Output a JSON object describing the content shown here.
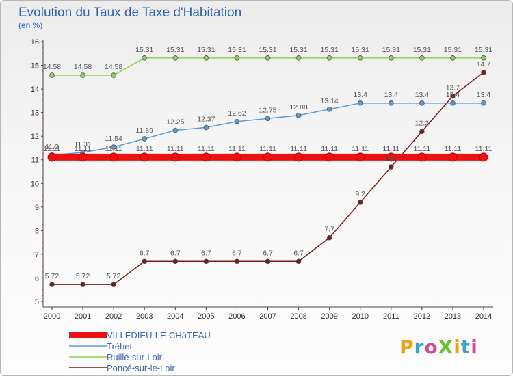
{
  "chart_data": {
    "type": "line",
    "title": "Evolution du Taux de Taxe d'Habitation",
    "subtitle": "(en %)",
    "x": [
      "2000",
      "2001",
      "2002",
      "2003",
      "2004",
      "2005",
      "2006",
      "2007",
      "2008",
      "2009",
      "2010",
      "2011",
      "2012",
      "2013",
      "2014"
    ],
    "ylim": [
      5,
      16
    ],
    "yticks": [
      "5",
      "6",
      "7",
      "8",
      "9",
      "10",
      "11",
      "12",
      "13",
      "14",
      "15",
      "16"
    ],
    "grid": false,
    "legend_position": "bottom-left",
    "series": [
      {
        "name": "VILLEDIEU-LE-CHâTEAU",
        "color": "#ee1111",
        "values": [
          11.11,
          11.11,
          11.11,
          11.11,
          11.11,
          11.11,
          11.11,
          11.11,
          11.11,
          11.11,
          11.11,
          11.11,
          11.11,
          11.11,
          11.11
        ],
        "labels": [
          "11.11",
          "11.11",
          "11.11",
          "11.11",
          "11.11",
          "11.11",
          "11.11",
          "11.11",
          "11.11",
          "11.11",
          "11.11",
          "11.11",
          "11.11",
          "11.11",
          "11.11"
        ]
      },
      {
        "name": "Tréhet",
        "color": "#5b9bd5",
        "values": [
          11.2,
          11.31,
          11.54,
          11.89,
          12.25,
          12.37,
          12.62,
          12.75,
          12.88,
          13.14,
          13.4,
          13.4,
          13.4,
          13.4,
          13.4
        ],
        "labels": [
          "11.2",
          "11.31",
          "11.54",
          "11.89",
          "12.25",
          "12.37",
          "12.62",
          "12.75",
          "12.88",
          "13.14",
          "13.4",
          "13.4",
          "13.4",
          "13.4",
          "13.4"
        ]
      },
      {
        "name": "Ruillé-sur-Loir",
        "color": "#8fd14f",
        "values": [
          14.58,
          14.58,
          14.58,
          15.31,
          15.31,
          15.31,
          15.31,
          15.31,
          15.31,
          15.31,
          15.31,
          15.31,
          15.31,
          15.31,
          15.31
        ],
        "labels": [
          "14.58",
          "14.58",
          "14.58",
          "15.31",
          "15.31",
          "15.31",
          "15.31",
          "15.31",
          "15.31",
          "15.31",
          "15.31",
          "15.31",
          "15.31",
          "15.31",
          "15.31"
        ]
      },
      {
        "name": "Poncé-sur-le-Loir",
        "color": "#7a1c1c",
        "values": [
          5.72,
          5.72,
          5.72,
          6.7,
          6.7,
          6.7,
          6.7,
          6.7,
          6.7,
          7.7,
          9.2,
          10.7,
          12.2,
          13.7,
          14.7
        ],
        "labels": [
          "5.72",
          "5.72",
          "5.72",
          "6.7",
          "6.7",
          "6.7",
          "6.7",
          "6.7",
          "6.7",
          "7.7",
          "9.2",
          "10.7",
          "12.2",
          "13.7",
          "14.7"
        ]
      }
    ]
  },
  "logo_text": "ProXiti"
}
